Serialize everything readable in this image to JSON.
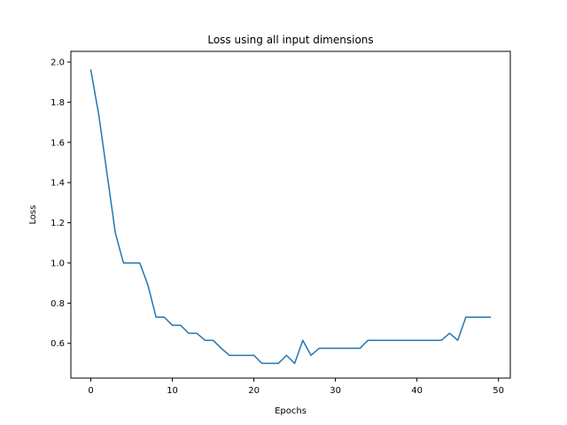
{
  "chart_data": {
    "type": "line",
    "title": "Loss using all input dimensions",
    "xlabel": "Epochs",
    "ylabel": "Loss",
    "xlim": [
      -2.45,
      51.45
    ],
    "ylim": [
      0.427,
      2.053
    ],
    "xticks": [
      0,
      10,
      20,
      30,
      40,
      50
    ],
    "yticks": [
      0.6,
      0.8,
      1.0,
      1.2,
      1.4,
      1.6,
      1.8,
      2.0
    ],
    "grid": false,
    "series": [
      {
        "color": "#1f77b4",
        "x": [
          0,
          1,
          2,
          3,
          4,
          5,
          6,
          7,
          8,
          9,
          10,
          11,
          12,
          13,
          14,
          15,
          16,
          17,
          18,
          19,
          20,
          21,
          22,
          23,
          24,
          25,
          26,
          27,
          28,
          29,
          30,
          31,
          32,
          33,
          34,
          35,
          36,
          37,
          38,
          39,
          40,
          41,
          42,
          43,
          44,
          45,
          46,
          47,
          48,
          49
        ],
        "y": [
          1.96,
          1.73,
          1.44,
          1.15,
          1.0,
          1.0,
          1.0,
          0.89,
          0.73,
          0.73,
          0.69,
          0.69,
          0.65,
          0.65,
          0.615,
          0.615,
          0.575,
          0.54,
          0.54,
          0.54,
          0.54,
          0.5,
          0.5,
          0.5,
          0.54,
          0.5,
          0.615,
          0.54,
          0.575,
          0.575,
          0.575,
          0.575,
          0.575,
          0.575,
          0.615,
          0.615,
          0.615,
          0.615,
          0.615,
          0.615,
          0.615,
          0.615,
          0.615,
          0.615,
          0.65,
          0.615,
          0.73,
          0.73,
          0.73,
          0.73
        ]
      }
    ]
  }
}
